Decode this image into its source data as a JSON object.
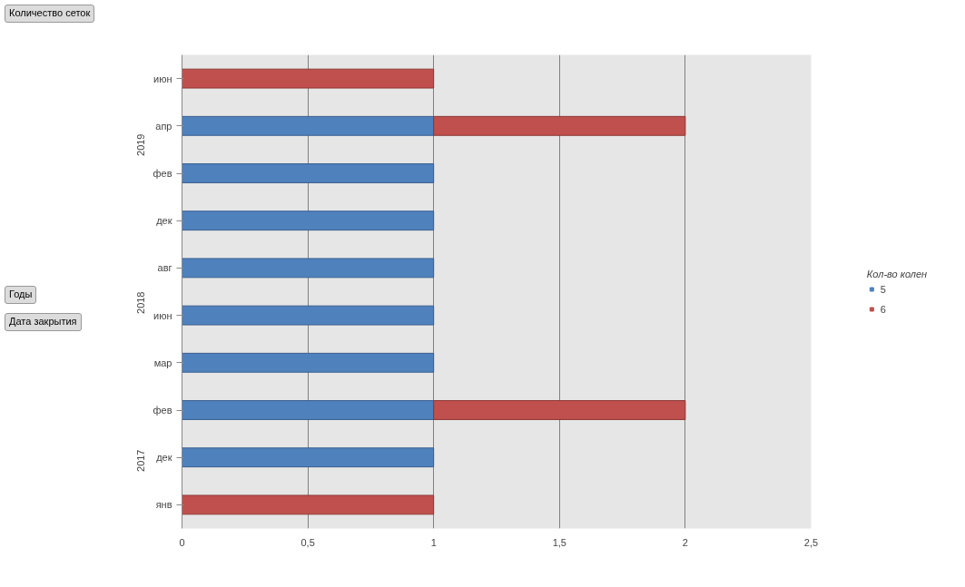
{
  "chart_data": {
    "type": "bar",
    "orientation": "horizontal",
    "stacked": true,
    "categories": [
      "июн",
      "апр",
      "фев",
      "дек",
      "авг",
      "июн",
      "мар",
      "фев",
      "дек",
      "янв"
    ],
    "series": [
      {
        "name": "5",
        "color": "#4f81bd",
        "values": [
          null,
          1,
          1,
          1,
          1,
          1,
          1,
          1,
          1,
          null
        ]
      },
      {
        "name": "6",
        "color": "#c0504d",
        "values": [
          1,
          1,
          null,
          null,
          null,
          null,
          null,
          1,
          null,
          1
        ]
      }
    ],
    "xlim": [
      0,
      2.5
    ],
    "xticks": [
      0,
      {
        "value": 0.5,
        "label": "0,5"
      },
      1,
      {
        "value": 1.5,
        "label": "1,5"
      },
      2,
      {
        "value": 2.5,
        "label": "2,5"
      }
    ],
    "grid": "x",
    "legend": "right",
    "legend_title": "Кол-во колен",
    "annotations": [
      "Количество сеток",
      "Годы",
      "Дата закрытия",
      "2019",
      "2018",
      "2017"
    ]
  }
}
